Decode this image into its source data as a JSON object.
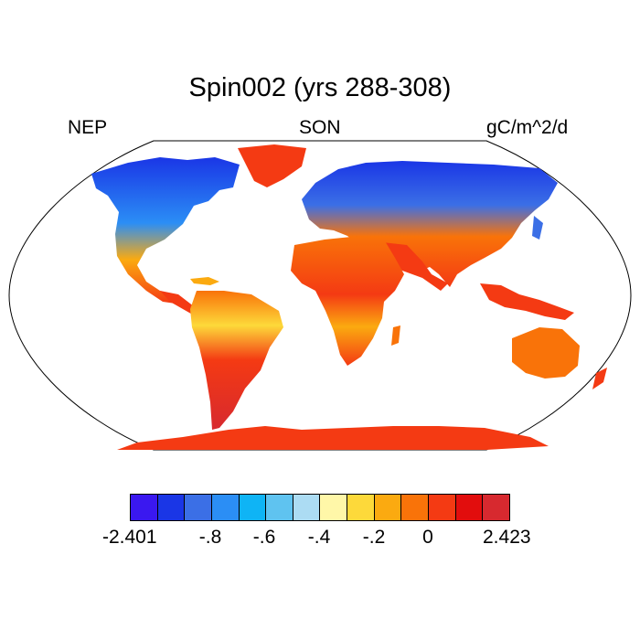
{
  "title": "Spin002 (yrs 288-308)",
  "labels": {
    "left": "NEP",
    "center": "SON",
    "right": "gC/m^2/d"
  },
  "colorbar": {
    "colors": [
      "#3a18f0",
      "#1a36e6",
      "#3b6fe6",
      "#2b8ef5",
      "#0fb4f5",
      "#5fc3f0",
      "#acdcf3",
      "#fff7a8",
      "#fdd93a",
      "#fbaa10",
      "#f97309",
      "#f43a13",
      "#e20d0d",
      "#d7292f"
    ],
    "ticks": [
      "-2.401",
      "-.8",
      "-.6",
      "-.4",
      "-.2",
      "0",
      "2.423"
    ]
  },
  "map": {
    "projection": "robinson",
    "ocean_color": "#ffffff",
    "outline_color": "#000000"
  }
}
